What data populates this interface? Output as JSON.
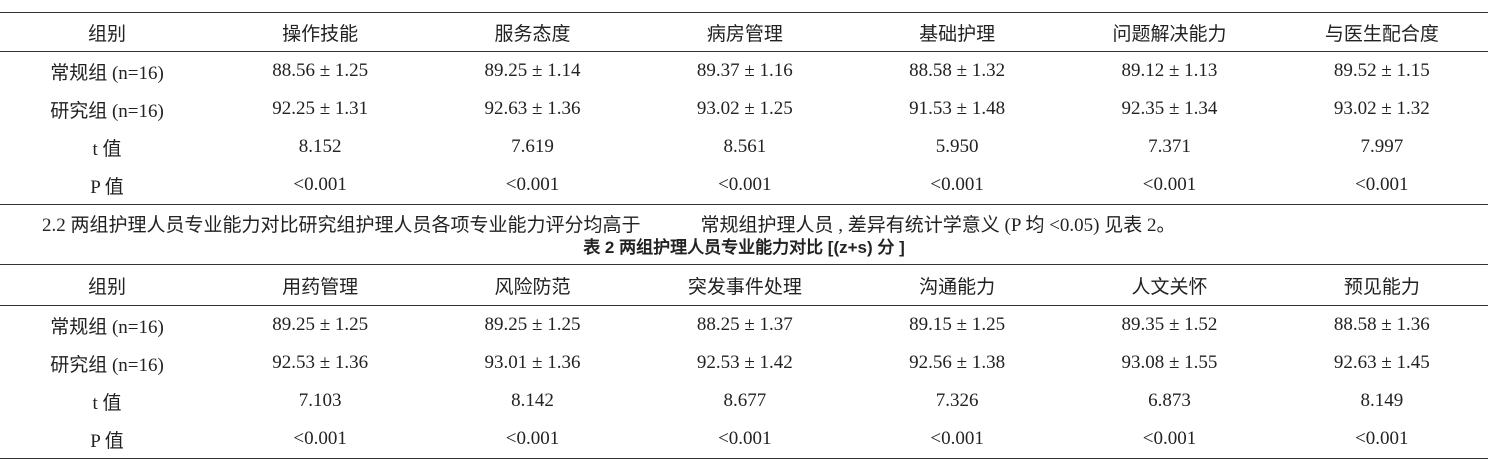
{
  "table1": {
    "header": [
      "组别",
      "操作技能",
      "服务态度",
      "病房管理",
      "基础护理",
      "问题解决能力",
      "与医生配合度"
    ],
    "rows": [
      [
        "常规组 (n=16)",
        "88.56 ± 1.25",
        "89.25 ± 1.14",
        "89.37 ± 1.16",
        "88.58 ± 1.32",
        "89.12 ± 1.13",
        "89.52 ± 1.15"
      ],
      [
        "研究组 (n=16)",
        "92.25 ± 1.31",
        "92.63 ± 1.36",
        "93.02 ± 1.25",
        "91.53 ± 1.48",
        "92.35 ± 1.34",
        "93.02 ± 1.32"
      ],
      [
        "t 值",
        "8.152",
        "7.619",
        "8.561",
        "5.950",
        "7.371",
        "7.997"
      ],
      [
        "P 值",
        "<0.001",
        "<0.001",
        "<0.001",
        "<0.001",
        "<0.001",
        "<0.001"
      ]
    ]
  },
  "paragraph": [
    "2.2 两组护理人员专业能力对比研究组护理人员各项专业能力评分均高于",
    "常规组护理人员 , 差异有统计学意义 (P 均 <0.05) 见表 2。"
  ],
  "table2": {
    "caption": "表 2 两组护理人员专业能力对比 [(z+s) 分 ]",
    "header": [
      "组别",
      "用药管理",
      "风险防范",
      "突发事件处理",
      "沟通能力",
      "人文关怀",
      "预见能力"
    ],
    "rows": [
      [
        "常规组 (n=16)",
        "89.25 ± 1.25",
        "89.25 ± 1.25",
        "88.25 ± 1.37",
        "89.15 ± 1.25",
        "89.35 ± 1.52",
        "88.58 ± 1.36"
      ],
      [
        "研究组 (n=16)",
        "92.53 ± 1.36",
        "93.01 ± 1.36",
        "92.53 ± 1.42",
        "92.56 ± 1.38",
        "93.08 ± 1.55",
        "92.63 ± 1.45"
      ],
      [
        "t 值",
        "7.103",
        "8.142",
        "8.677",
        "7.326",
        "6.873",
        "8.149"
      ],
      [
        "P 值",
        "<0.001",
        "<0.001",
        "<0.001",
        "<0.001",
        "<0.001",
        "<0.001"
      ]
    ]
  }
}
